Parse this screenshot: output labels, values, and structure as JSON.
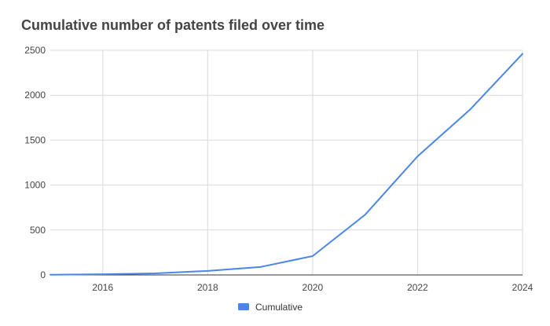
{
  "chart_data": {
    "type": "line",
    "title": "Cumulative number of patents filed over time",
    "xlabel": "",
    "ylabel": "",
    "x": [
      2015,
      2016,
      2017,
      2018,
      2019,
      2020,
      2021,
      2022,
      2023,
      2024
    ],
    "series": [
      {
        "name": "Cumulative",
        "color": "#4a86e8",
        "values": [
          2,
          8,
          18,
          45,
          88,
          210,
          670,
          1320,
          1840,
          2460
        ]
      }
    ],
    "xlim": [
      2015,
      2024
    ],
    "ylim": [
      0,
      2500
    ],
    "xticks": [
      2016,
      2018,
      2020,
      2022,
      2024
    ],
    "yticks": [
      0,
      500,
      1000,
      1500,
      2000,
      2500
    ],
    "grid": true,
    "legend": "bottom-center"
  }
}
